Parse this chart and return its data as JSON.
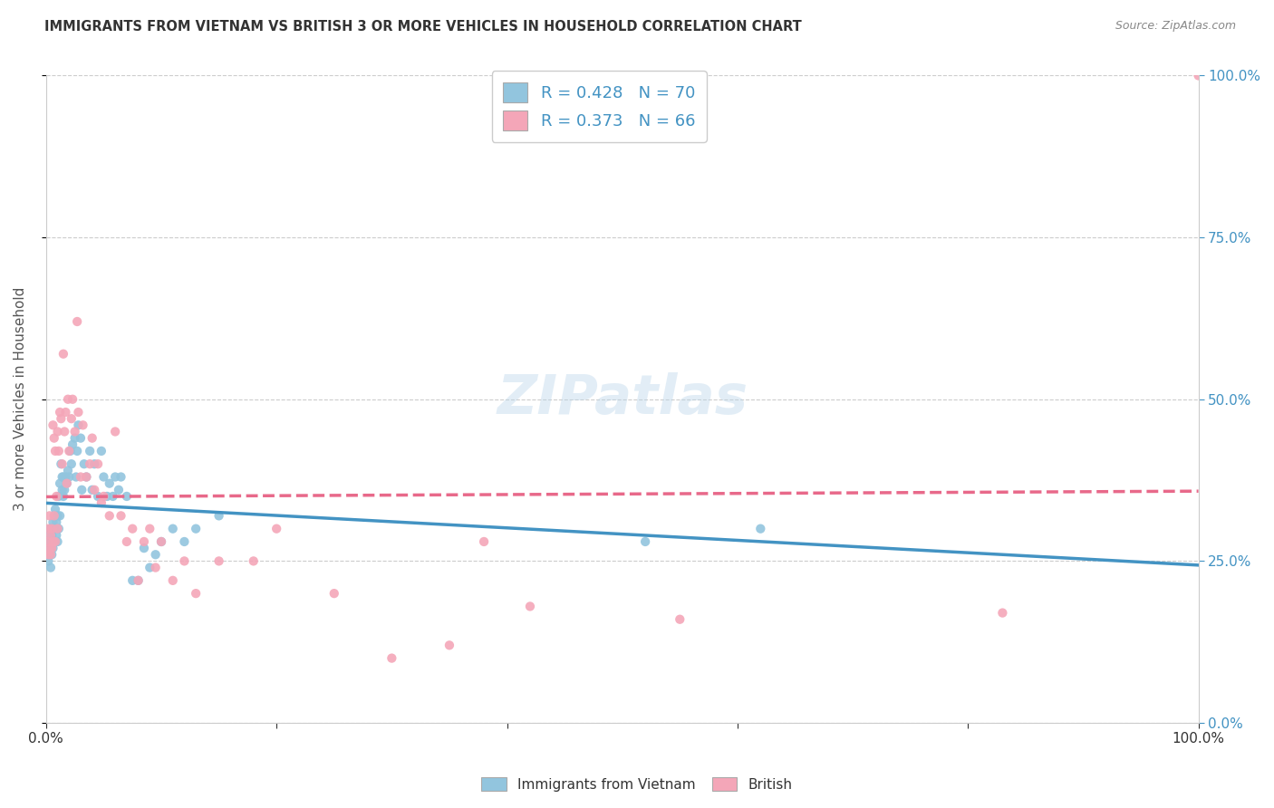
{
  "title": "IMMIGRANTS FROM VIETNAM VS BRITISH 3 OR MORE VEHICLES IN HOUSEHOLD CORRELATION CHART",
  "source": "Source: ZipAtlas.com",
  "ylabel": "3 or more Vehicles in Household",
  "legend_label1": "Immigrants from Vietnam",
  "legend_label2": "British",
  "r1": 0.428,
  "n1": 70,
  "r2": 0.373,
  "n2": 66,
  "color_blue": "#92c5de",
  "color_pink": "#f4a6b8",
  "color_line_blue": "#4393c3",
  "color_line_pink": "#e8698a",
  "watermark": "ZIPatlas",
  "background_color": "#ffffff",
  "xlim": [
    0,
    1.0
  ],
  "ylim": [
    0,
    1.0
  ],
  "x_ticks": [
    0.0,
    0.2,
    0.4,
    0.6,
    0.8,
    1.0
  ],
  "x_tick_labels": [
    "0.0%",
    "",
    "",
    "",
    "",
    "100.0%"
  ],
  "y_ticks": [
    0.0,
    0.25,
    0.5,
    0.75,
    1.0
  ],
  "y_tick_labels_right": [
    "0.0%",
    "25.0%",
    "50.0%",
    "75.0%",
    "100.0%"
  ],
  "blue_x": [
    0.001,
    0.002,
    0.002,
    0.003,
    0.003,
    0.004,
    0.004,
    0.004,
    0.005,
    0.005,
    0.006,
    0.006,
    0.007,
    0.007,
    0.008,
    0.008,
    0.009,
    0.009,
    0.01,
    0.01,
    0.011,
    0.011,
    0.012,
    0.012,
    0.013,
    0.014,
    0.014,
    0.015,
    0.015,
    0.016,
    0.017,
    0.018,
    0.019,
    0.02,
    0.021,
    0.022,
    0.023,
    0.025,
    0.026,
    0.027,
    0.028,
    0.03,
    0.031,
    0.033,
    0.035,
    0.038,
    0.04,
    0.042,
    0.045,
    0.048,
    0.05,
    0.053,
    0.055,
    0.058,
    0.06,
    0.063,
    0.065,
    0.07,
    0.075,
    0.08,
    0.085,
    0.09,
    0.095,
    0.1,
    0.11,
    0.12,
    0.13,
    0.15,
    0.52,
    0.62
  ],
  "blue_y": [
    0.27,
    0.25,
    0.29,
    0.26,
    0.28,
    0.24,
    0.27,
    0.3,
    0.26,
    0.29,
    0.27,
    0.31,
    0.28,
    0.3,
    0.28,
    0.33,
    0.29,
    0.31,
    0.28,
    0.32,
    0.35,
    0.3,
    0.37,
    0.32,
    0.4,
    0.36,
    0.38,
    0.35,
    0.38,
    0.36,
    0.38,
    0.37,
    0.39,
    0.38,
    0.42,
    0.4,
    0.43,
    0.44,
    0.38,
    0.42,
    0.46,
    0.44,
    0.36,
    0.4,
    0.38,
    0.42,
    0.36,
    0.4,
    0.35,
    0.42,
    0.38,
    0.35,
    0.37,
    0.35,
    0.38,
    0.36,
    0.38,
    0.35,
    0.22,
    0.22,
    0.27,
    0.24,
    0.26,
    0.28,
    0.3,
    0.28,
    0.3,
    0.32,
    0.28,
    0.3
  ],
  "pink_x": [
    0.001,
    0.002,
    0.002,
    0.003,
    0.003,
    0.004,
    0.004,
    0.005,
    0.005,
    0.006,
    0.006,
    0.007,
    0.007,
    0.008,
    0.008,
    0.009,
    0.01,
    0.01,
    0.011,
    0.012,
    0.013,
    0.014,
    0.015,
    0.016,
    0.017,
    0.018,
    0.019,
    0.02,
    0.022,
    0.023,
    0.025,
    0.027,
    0.028,
    0.03,
    0.032,
    0.035,
    0.038,
    0.04,
    0.042,
    0.045,
    0.048,
    0.05,
    0.055,
    0.06,
    0.065,
    0.07,
    0.075,
    0.08,
    0.085,
    0.09,
    0.095,
    0.1,
    0.11,
    0.12,
    0.13,
    0.15,
    0.18,
    0.38,
    0.42,
    0.55,
    0.2,
    0.25,
    0.3,
    0.35,
    0.83,
    1.0
  ],
  "pink_y": [
    0.28,
    0.26,
    0.3,
    0.27,
    0.32,
    0.26,
    0.29,
    0.3,
    0.27,
    0.46,
    0.28,
    0.44,
    0.32,
    0.28,
    0.42,
    0.35,
    0.3,
    0.45,
    0.42,
    0.48,
    0.47,
    0.4,
    0.57,
    0.45,
    0.48,
    0.37,
    0.5,
    0.42,
    0.47,
    0.5,
    0.45,
    0.62,
    0.48,
    0.38,
    0.46,
    0.38,
    0.4,
    0.44,
    0.36,
    0.4,
    0.34,
    0.35,
    0.32,
    0.45,
    0.32,
    0.28,
    0.3,
    0.22,
    0.28,
    0.3,
    0.24,
    0.28,
    0.22,
    0.25,
    0.2,
    0.25,
    0.25,
    0.28,
    0.18,
    0.16,
    0.3,
    0.2,
    0.1,
    0.12,
    0.17,
    1.0
  ]
}
